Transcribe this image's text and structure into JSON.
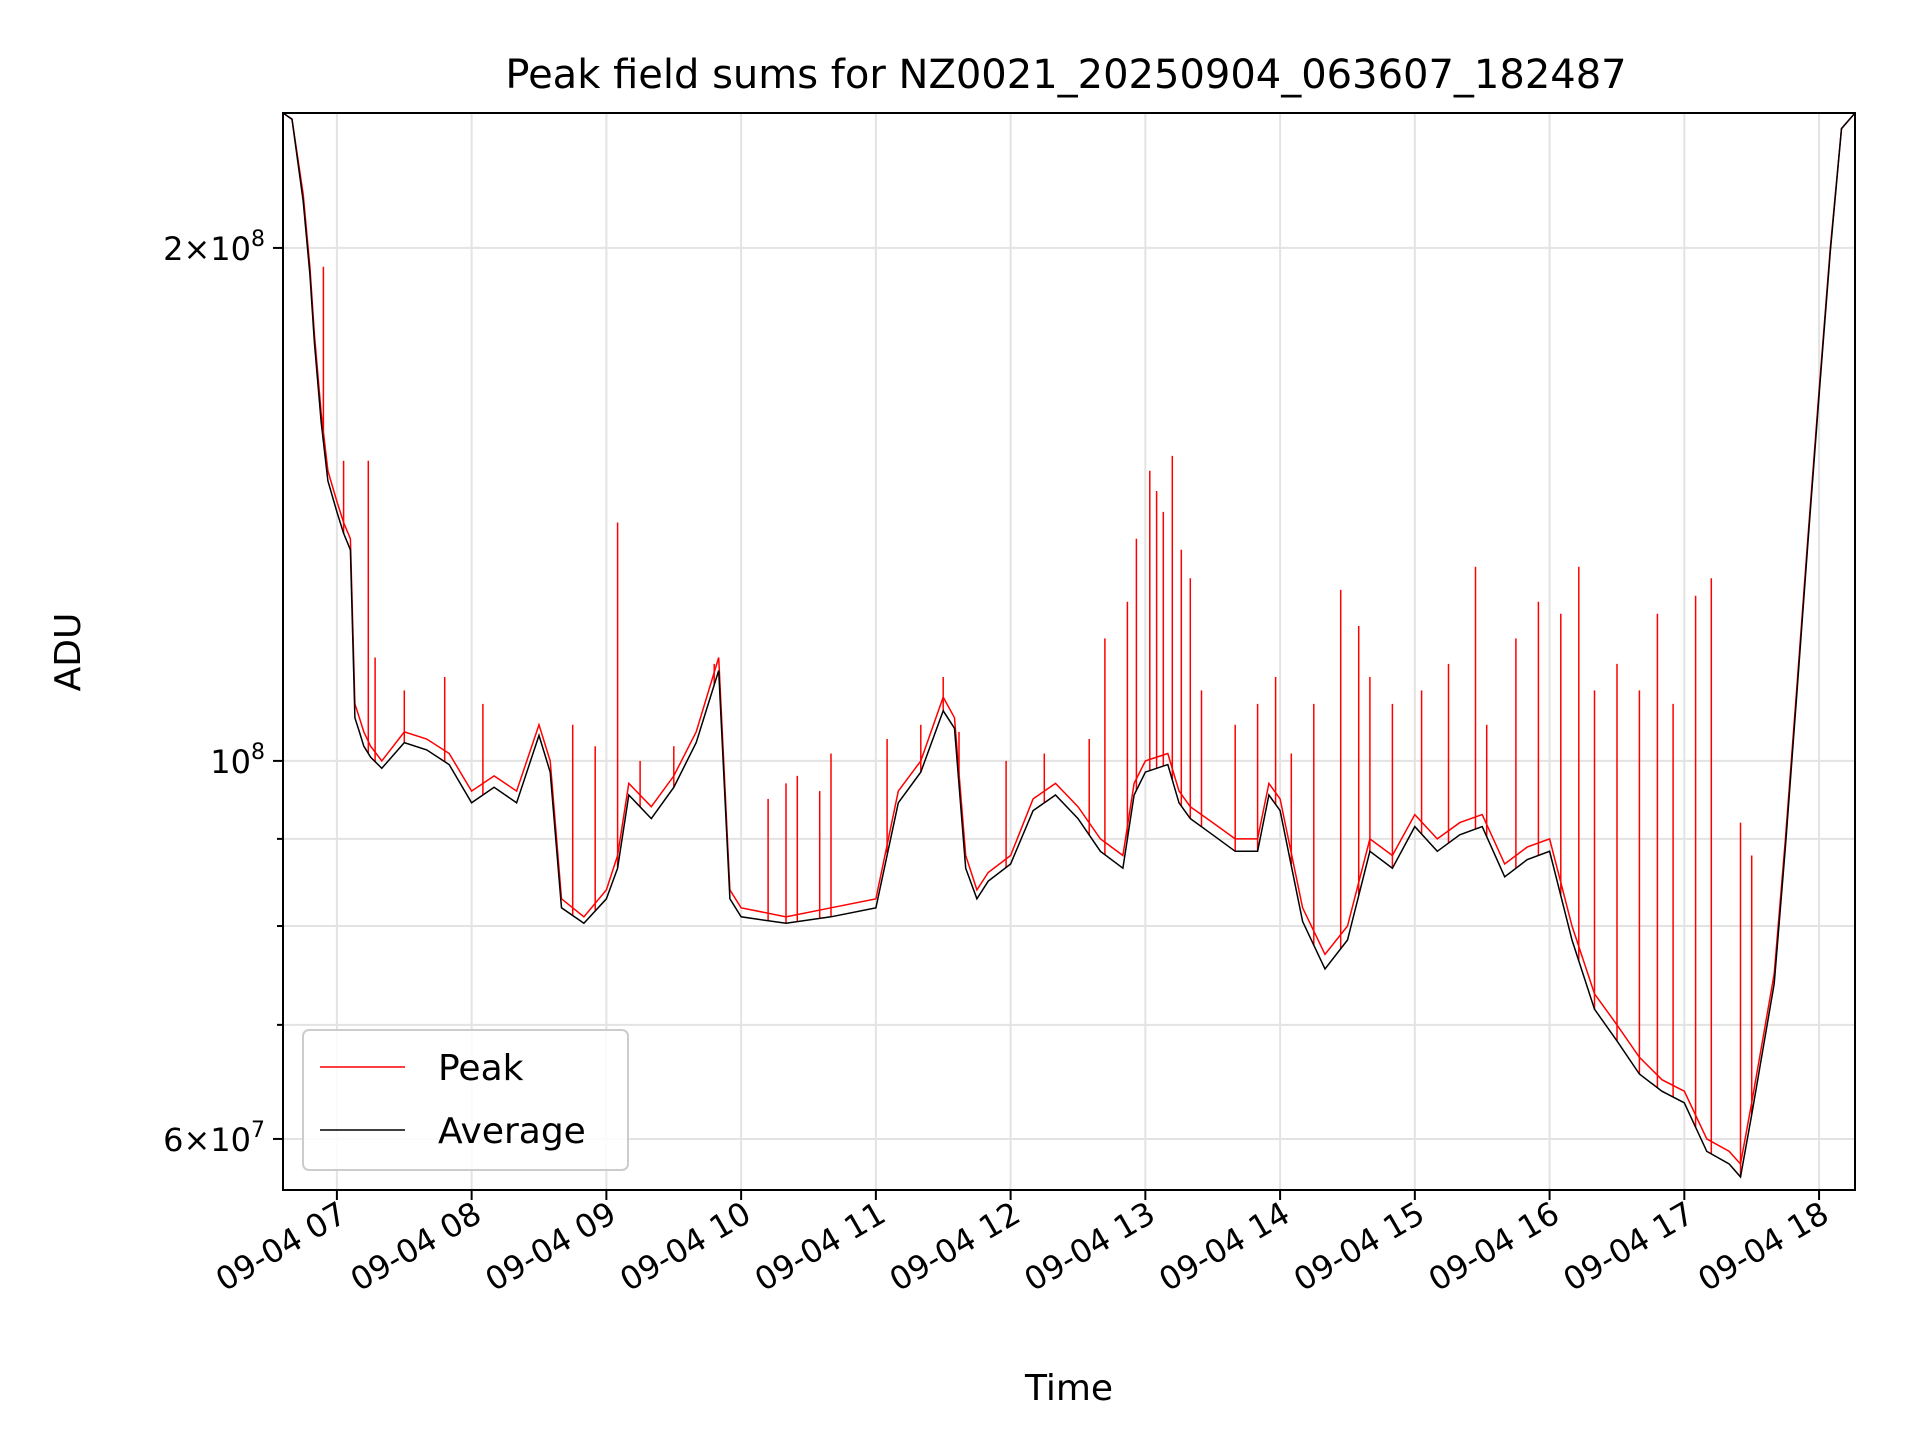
{
  "chart_data": {
    "type": "line",
    "title": "Peak field sums for NZ0021_20250904_063607_182487",
    "xlabel": "Time",
    "ylabel": "ADU",
    "x_scale": "time",
    "y_scale": "log",
    "xlim": [
      "2025-09-04 06:36",
      "2025-09-04 18:16"
    ],
    "ylim": [
      56000000,
      240000000
    ],
    "x_ticks": [
      {
        "value": "2025-09-04 07:00",
        "label": "09-04 07"
      },
      {
        "value": "2025-09-04 08:00",
        "label": "09-04 08"
      },
      {
        "value": "2025-09-04 09:00",
        "label": "09-04 09"
      },
      {
        "value": "2025-09-04 10:00",
        "label": "09-04 10"
      },
      {
        "value": "2025-09-04 11:00",
        "label": "09-04 11"
      },
      {
        "value": "2025-09-04 12:00",
        "label": "09-04 12"
      },
      {
        "value": "2025-09-04 13:00",
        "label": "09-04 13"
      },
      {
        "value": "2025-09-04 14:00",
        "label": "09-04 14"
      },
      {
        "value": "2025-09-04 15:00",
        "label": "09-04 15"
      },
      {
        "value": "2025-09-04 16:00",
        "label": "09-04 16"
      },
      {
        "value": "2025-09-04 17:00",
        "label": "09-04 17"
      },
      {
        "value": "2025-09-04 18:00",
        "label": "09-04 18"
      }
    ],
    "y_major_ticks": [
      {
        "value": 60000000,
        "mantissa": "6",
        "exponent": "7"
      },
      {
        "value": 100000000,
        "mantissa": "",
        "exponent": "8"
      },
      {
        "value": 200000000,
        "mantissa": "2",
        "exponent": "8"
      }
    ],
    "y_minor_ticks": [
      70000000,
      80000000,
      90000000
    ],
    "grid": true,
    "legend": {
      "position": "lower-left"
    },
    "series": [
      {
        "name": "Peak",
        "color": "#ff0000",
        "points": [
          [
            "06:36",
            240000000
          ],
          [
            "06:40",
            238000000
          ],
          [
            "06:45",
            215000000
          ],
          [
            "06:48",
            195000000
          ],
          [
            "06:50",
            178000000
          ],
          [
            "06:53",
            160000000
          ],
          [
            "06:56",
            148000000
          ],
          [
            "07:00",
            142000000
          ],
          [
            "07:03",
            138000000
          ],
          [
            "07:06",
            135000000
          ],
          [
            "07:08",
            108000000
          ],
          [
            "07:10",
            106000000
          ],
          [
            "07:12",
            104000000
          ],
          [
            "07:15",
            102000000
          ],
          [
            "07:20",
            100000000
          ],
          [
            "07:30",
            104000000
          ],
          [
            "07:40",
            103000000
          ],
          [
            "07:50",
            101000000
          ],
          [
            "08:00",
            96000000
          ],
          [
            "08:10",
            98000000
          ],
          [
            "08:15",
            97000000
          ],
          [
            "08:20",
            96000000
          ],
          [
            "08:30",
            105000000
          ],
          [
            "08:35",
            100000000
          ],
          [
            "08:40",
            83000000
          ],
          [
            "08:50",
            81000000
          ],
          [
            "09:00",
            84000000
          ],
          [
            "09:05",
            88000000
          ],
          [
            "09:10",
            97000000
          ],
          [
            "09:20",
            94000000
          ],
          [
            "09:30",
            98000000
          ],
          [
            "09:40",
            104000000
          ],
          [
            "09:50",
            115000000
          ],
          [
            "09:55",
            84000000
          ],
          [
            "10:00",
            82000000
          ],
          [
            "10:20",
            81000000
          ],
          [
            "10:40",
            82000000
          ],
          [
            "11:00",
            83000000
          ],
          [
            "11:10",
            96000000
          ],
          [
            "11:20",
            100000000
          ],
          [
            "11:30",
            109000000
          ],
          [
            "11:35",
            106000000
          ],
          [
            "11:40",
            88000000
          ],
          [
            "11:45",
            84000000
          ],
          [
            "11:50",
            86000000
          ],
          [
            "12:00",
            88000000
          ],
          [
            "12:10",
            95000000
          ],
          [
            "12:20",
            97000000
          ],
          [
            "12:30",
            94000000
          ],
          [
            "12:40",
            90000000
          ],
          [
            "12:50",
            88000000
          ],
          [
            "12:55",
            97000000
          ],
          [
            "13:00",
            100000000
          ],
          [
            "13:10",
            101000000
          ],
          [
            "13:15",
            96000000
          ],
          [
            "13:20",
            94000000
          ],
          [
            "13:30",
            92000000
          ],
          [
            "13:40",
            90000000
          ],
          [
            "13:50",
            90000000
          ],
          [
            "13:55",
            97000000
          ],
          [
            "14:00",
            95000000
          ],
          [
            "14:10",
            82000000
          ],
          [
            "14:20",
            77000000
          ],
          [
            "14:30",
            80000000
          ],
          [
            "14:40",
            90000000
          ],
          [
            "14:50",
            88000000
          ],
          [
            "15:00",
            93000000
          ],
          [
            "15:10",
            90000000
          ],
          [
            "15:20",
            92000000
          ],
          [
            "15:30",
            93000000
          ],
          [
            "15:40",
            87000000
          ],
          [
            "15:50",
            89000000
          ],
          [
            "16:00",
            90000000
          ],
          [
            "16:10",
            80000000
          ],
          [
            "16:20",
            73000000
          ],
          [
            "16:30",
            70000000
          ],
          [
            "16:40",
            67000000
          ],
          [
            "16:50",
            65000000
          ],
          [
            "17:00",
            64000000
          ],
          [
            "17:10",
            60000000
          ],
          [
            "17:20",
            59000000
          ],
          [
            "17:25",
            58000000
          ],
          [
            "17:30",
            63000000
          ],
          [
            "17:40",
            75000000
          ],
          [
            "17:45",
            90000000
          ],
          [
            "17:50",
            110000000
          ],
          [
            "17:55",
            135000000
          ],
          [
            "18:00",
            165000000
          ],
          [
            "18:05",
            200000000
          ],
          [
            "18:10",
            235000000
          ],
          [
            "18:16",
            240000000
          ]
        ],
        "spikes": [
          [
            "06:54",
            195000000
          ],
          [
            "07:03",
            150000000
          ],
          [
            "07:14",
            150000000
          ],
          [
            "07:17",
            115000000
          ],
          [
            "07:30",
            110000000
          ],
          [
            "07:48",
            112000000
          ],
          [
            "08:05",
            108000000
          ],
          [
            "08:45",
            105000000
          ],
          [
            "08:55",
            102000000
          ],
          [
            "09:05",
            138000000
          ],
          [
            "09:15",
            100000000
          ],
          [
            "09:30",
            102000000
          ],
          [
            "09:48",
            114000000
          ],
          [
            "10:12",
            95000000
          ],
          [
            "10:20",
            97000000
          ],
          [
            "10:25",
            98000000
          ],
          [
            "10:35",
            96000000
          ],
          [
            "10:40",
            101000000
          ],
          [
            "11:05",
            103000000
          ],
          [
            "11:20",
            105000000
          ],
          [
            "11:30",
            112000000
          ],
          [
            "11:37",
            104000000
          ],
          [
            "11:58",
            100000000
          ],
          [
            "12:15",
            101000000
          ],
          [
            "12:35",
            103000000
          ],
          [
            "12:42",
            118000000
          ],
          [
            "12:52",
            124000000
          ],
          [
            "12:56",
            135000000
          ],
          [
            "13:02",
            148000000
          ],
          [
            "13:05",
            144000000
          ],
          [
            "13:08",
            140000000
          ],
          [
            "13:12",
            151000000
          ],
          [
            "13:16",
            133000000
          ],
          [
            "13:20",
            128000000
          ],
          [
            "13:25",
            110000000
          ],
          [
            "13:40",
            105000000
          ],
          [
            "13:50",
            108000000
          ],
          [
            "13:58",
            112000000
          ],
          [
            "14:05",
            101000000
          ],
          [
            "14:15",
            108000000
          ],
          [
            "14:27",
            126000000
          ],
          [
            "14:35",
            120000000
          ],
          [
            "14:40",
            112000000
          ],
          [
            "14:50",
            108000000
          ],
          [
            "15:03",
            110000000
          ],
          [
            "15:15",
            114000000
          ],
          [
            "15:27",
            130000000
          ],
          [
            "15:32",
            105000000
          ],
          [
            "15:45",
            118000000
          ],
          [
            "15:55",
            124000000
          ],
          [
            "16:05",
            122000000
          ],
          [
            "16:13",
            130000000
          ],
          [
            "16:20",
            110000000
          ],
          [
            "16:30",
            114000000
          ],
          [
            "16:40",
            110000000
          ],
          [
            "16:48",
            122000000
          ],
          [
            "16:55",
            108000000
          ],
          [
            "17:05",
            125000000
          ],
          [
            "17:12",
            128000000
          ],
          [
            "17:25",
            92000000
          ],
          [
            "17:30",
            88000000
          ]
        ]
      },
      {
        "name": "Average",
        "color": "#000000",
        "points": [
          [
            "06:36",
            240000000
          ],
          [
            "06:40",
            238000000
          ],
          [
            "06:45",
            213000000
          ],
          [
            "06:48",
            193000000
          ],
          [
            "06:50",
            176000000
          ],
          [
            "06:53",
            158000000
          ],
          [
            "06:56",
            146000000
          ],
          [
            "07:00",
            140000000
          ],
          [
            "07:03",
            136000000
          ],
          [
            "07:06",
            133000000
          ],
          [
            "07:08",
            106000000
          ],
          [
            "07:10",
            104000000
          ],
          [
            "07:12",
            102000000
          ],
          [
            "07:15",
            100500000
          ],
          [
            "07:20",
            99000000
          ],
          [
            "07:30",
            102500000
          ],
          [
            "07:40",
            101500000
          ],
          [
            "07:50",
            99500000
          ],
          [
            "08:00",
            94500000
          ],
          [
            "08:10",
            96500000
          ],
          [
            "08:15",
            95500000
          ],
          [
            "08:20",
            94500000
          ],
          [
            "08:30",
            103500000
          ],
          [
            "08:35",
            98500000
          ],
          [
            "08:40",
            82000000
          ],
          [
            "08:50",
            80300000
          ],
          [
            "09:00",
            83000000
          ],
          [
            "09:05",
            86500000
          ],
          [
            "09:10",
            95500000
          ],
          [
            "09:20",
            92500000
          ],
          [
            "09:30",
            96500000
          ],
          [
            "09:40",
            102500000
          ],
          [
            "09:50",
            113000000
          ],
          [
            "09:55",
            83000000
          ],
          [
            "10:00",
            81000000
          ],
          [
            "10:20",
            80300000
          ],
          [
            "10:40",
            81000000
          ],
          [
            "11:00",
            82000000
          ],
          [
            "11:10",
            94500000
          ],
          [
            "11:20",
            98500000
          ],
          [
            "11:30",
            107000000
          ],
          [
            "11:35",
            104500000
          ],
          [
            "11:40",
            86500000
          ],
          [
            "11:45",
            83000000
          ],
          [
            "11:50",
            85000000
          ],
          [
            "12:00",
            87000000
          ],
          [
            "12:10",
            93500000
          ],
          [
            "12:20",
            95500000
          ],
          [
            "12:30",
            92500000
          ],
          [
            "12:40",
            88500000
          ],
          [
            "12:50",
            86500000
          ],
          [
            "12:55",
            95500000
          ],
          [
            "13:00",
            98500000
          ],
          [
            "13:10",
            99500000
          ],
          [
            "13:15",
            94500000
          ],
          [
            "13:20",
            92500000
          ],
          [
            "13:30",
            90500000
          ],
          [
            "13:40",
            88500000
          ],
          [
            "13:50",
            88500000
          ],
          [
            "13:55",
            95500000
          ],
          [
            "14:00",
            93500000
          ],
          [
            "14:10",
            80500000
          ],
          [
            "14:20",
            75500000
          ],
          [
            "14:30",
            78500000
          ],
          [
            "14:40",
            88500000
          ],
          [
            "14:50",
            86500000
          ],
          [
            "15:00",
            91500000
          ],
          [
            "15:10",
            88500000
          ],
          [
            "15:20",
            90500000
          ],
          [
            "15:30",
            91500000
          ],
          [
            "15:40",
            85500000
          ],
          [
            "15:50",
            87500000
          ],
          [
            "16:00",
            88500000
          ],
          [
            "16:10",
            78500000
          ],
          [
            "16:20",
            71500000
          ],
          [
            "16:30",
            68500000
          ],
          [
            "16:40",
            65500000
          ],
          [
            "16:50",
            64000000
          ],
          [
            "17:00",
            63000000
          ],
          [
            "17:10",
            59000000
          ],
          [
            "17:20",
            58000000
          ],
          [
            "17:25",
            57000000
          ],
          [
            "17:30",
            62000000
          ],
          [
            "17:40",
            74000000
          ],
          [
            "17:45",
            89000000
          ],
          [
            "17:50",
            109000000
          ],
          [
            "17:55",
            134000000
          ],
          [
            "18:00",
            164000000
          ],
          [
            "18:05",
            199000000
          ],
          [
            "18:10",
            235000000
          ],
          [
            "18:16",
            240000000
          ]
        ]
      }
    ]
  }
}
